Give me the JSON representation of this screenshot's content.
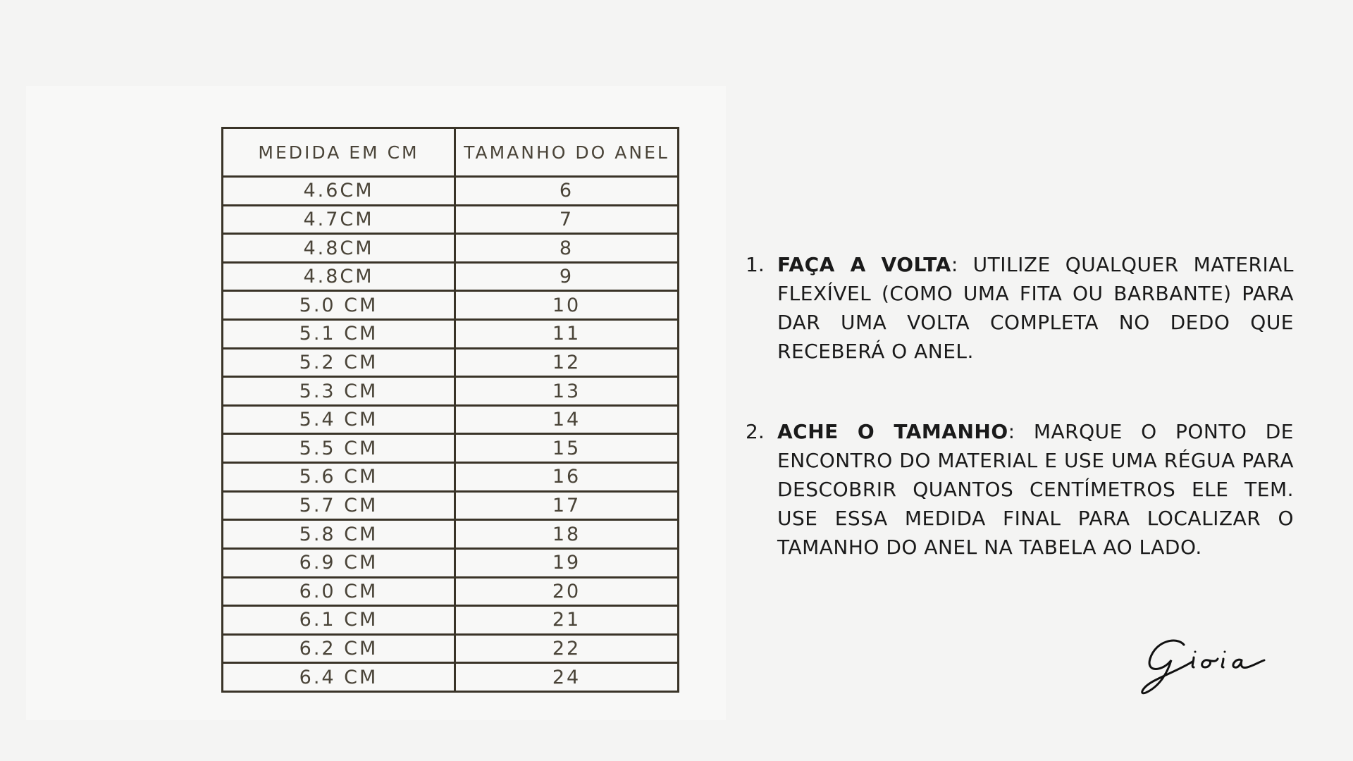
{
  "table": {
    "headers": [
      "MEDIDA EM CM",
      "TAMANHO DO ANEL"
    ],
    "rows": [
      [
        "4.6CM",
        "6"
      ],
      [
        "4.7CM",
        "7"
      ],
      [
        "4.8CM",
        "8"
      ],
      [
        "4.8CM",
        "9"
      ],
      [
        "5.0 CM",
        "10"
      ],
      [
        "5.1 CM",
        "11"
      ],
      [
        "5.2 CM",
        "12"
      ],
      [
        "5.3 CM",
        "13"
      ],
      [
        "5.4 CM",
        "14"
      ],
      [
        "5.5 CM",
        "15"
      ],
      [
        "5.6 CM",
        "16"
      ],
      [
        "5.7 CM",
        "17"
      ],
      [
        "5.8 CM",
        "18"
      ],
      [
        "6.9 CM",
        "19"
      ],
      [
        "6.0 CM",
        "20"
      ],
      [
        "6.1 CM",
        "21"
      ],
      [
        "6.2 CM",
        "22"
      ],
      [
        "6.4 CM",
        "24"
      ]
    ]
  },
  "steps": [
    {
      "number": "1.",
      "title": "FAÇA A VOLTA",
      "text": ": UTILIZE QUALQUER MATERIAL FLEXÍVEL (COMO UMA FITA OU BARBANTE) PARA DAR UMA VOLTA COMPLETA NO DEDO QUE RECEBERÁ O ANEL."
    },
    {
      "number": "2.",
      "title": "ACHE O TAMANHO",
      "text": ": MARQUE O PONTO DE ENCONTRO DO MATERIAL E USE UMA RÉGUA PARA DESCOBRIR QUANTOS CENTÍMETROS ELE TEM. USE ESSA MEDIDA FINAL PARA LOCALIZAR O TAMANHO DO ANEL NA TABELA AO LADO."
    }
  ],
  "logo": {
    "text": "Gioia"
  }
}
